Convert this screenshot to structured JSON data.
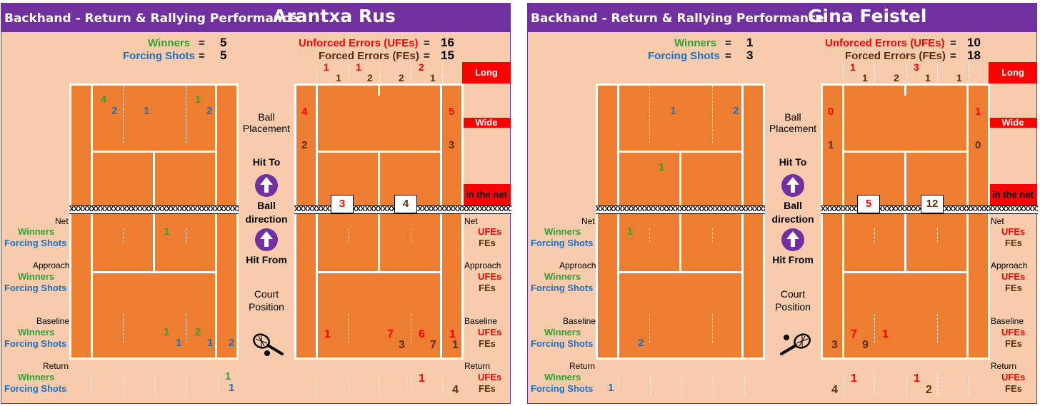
{
  "panels": [
    {
      "section_title": "Backhand - Return & Rallying Performance",
      "player": "Arantxa Rus",
      "summary": {
        "winners_label": "Winners",
        "winners": "5",
        "forcing_label": "Forcing Shots",
        "forcing": "5",
        "ufe_label": "Unforced Errors (UFEs)",
        "ufe": "16",
        "fe_label": "Forced Errors (FEs)",
        "fe": "15",
        "eq": "="
      },
      "top_errors": {
        "ufe": [
          "1",
          "1",
          "",
          "2"
        ],
        "fe": [
          "1",
          "2",
          "2",
          "1"
        ]
      },
      "side_tags": {
        "long": "Long",
        "wide": "Wide",
        "net": "in the net"
      },
      "left_court": {
        "winners": [
          "4",
          "",
          "",
          "1",
          ""
        ],
        "forcing": [
          "2",
          "1",
          "",
          "2"
        ],
        "mid_winner": "1",
        "net_winner": "1",
        "baseline_winners": [
          "1",
          "2"
        ],
        "baseline_forcing": [
          "1",
          "1",
          "2"
        ],
        "return_winner": "1",
        "return_forcing": "1"
      },
      "right_court": {
        "wide_ufe_left": "4",
        "wide_fe_left": "2",
        "wide_ufe_right": "5",
        "wide_fe_right": "3",
        "net_box_left": "3",
        "net_box_right": "4",
        "baseline_ufe": [
          "1",
          "7",
          "6",
          "1"
        ],
        "baseline_fe": [
          "3",
          "7",
          "1"
        ],
        "return_ufe": "1",
        "return_fe": "4"
      },
      "middle": {
        "ball_placement": "Ball Placement",
        "hit_to": "Hit To",
        "ball_direction": "Ball direction",
        "hit_from": "Hit From",
        "court_position": "Court Position"
      },
      "row_labels": {
        "net": "Net",
        "approach": "Approach",
        "baseline": "Baseline",
        "return": "Return",
        "winners": "Winners",
        "forcing": "Forcing Shots",
        "ufes": "UFEs",
        "fes": "FEs"
      }
    },
    {
      "section_title": "Backhand - Return & Rallying Performance",
      "player": "Gina Feistel",
      "summary": {
        "winners_label": "Winners",
        "winners": "1",
        "forcing_label": "Forcing Shots",
        "forcing": "3",
        "ufe_label": "Unforced Errors (UFEs)",
        "ufe": "10",
        "fe_label": "Forced Errors (FEs)",
        "fe": "18",
        "eq": "="
      },
      "top_errors": {
        "ufe": [
          "1",
          "",
          "3",
          ""
        ],
        "fe": [
          "1",
          "2",
          "1",
          "1"
        ]
      },
      "side_tags": {
        "long": "Long",
        "wide": "Wide",
        "net": "in the net"
      },
      "left_court": {
        "winners": [
          "",
          "",
          "",
          "",
          ""
        ],
        "forcing": [
          "",
          "1",
          "",
          "2"
        ],
        "mid_winner": "1",
        "net_winner": "1",
        "baseline_winners": [
          "",
          ""
        ],
        "baseline_forcing": [
          "2",
          "",
          ""
        ],
        "return_winner": "",
        "return_forcing": "1"
      },
      "right_court": {
        "wide_ufe_left": "0",
        "wide_fe_left": "1",
        "wide_ufe_right": "1",
        "wide_fe_right": "0",
        "net_box_left": "5",
        "net_box_right": "12",
        "baseline_ufe": [
          "7",
          "1",
          "",
          ""
        ],
        "baseline_fe": [
          "3",
          "9",
          ""
        ],
        "return_ufe": [
          "1",
          "1"
        ],
        "return_fe": [
          "4",
          "2"
        ]
      },
      "middle": {
        "ball_placement": "Ball Placement",
        "hit_to": "Hit To",
        "ball_direction": "Ball direction",
        "hit_from": "Hit From",
        "court_position": "Court Position"
      },
      "row_labels": {
        "net": "Net",
        "approach": "Approach",
        "baseline": "Baseline",
        "return": "Return",
        "winners": "Winners",
        "forcing": "Forcing Shots",
        "ufes": "UFEs",
        "fes": "FEs"
      }
    }
  ],
  "net_pattern": "XXXXXXXXXXXXXXXXXXXXXXXXXXXXXXXXXXXXXXXXXXXXXXXXXXXXXXXXXXXXXXXXXXXXXXXXXXXXXXXX",
  "icons": {
    "hit_to": "up-arrow-circle-icon",
    "hit_from": "up-arrow-circle-icon",
    "racket": "tennis-racket-icon"
  },
  "colors": {
    "header": "#7030a0",
    "background": "#f8cbad",
    "court": "#ed7d31",
    "winners": "#2ea12e",
    "forcing": "#1f6fc1",
    "ufe": "#ff0000",
    "fe": "#5b2c0c"
  }
}
